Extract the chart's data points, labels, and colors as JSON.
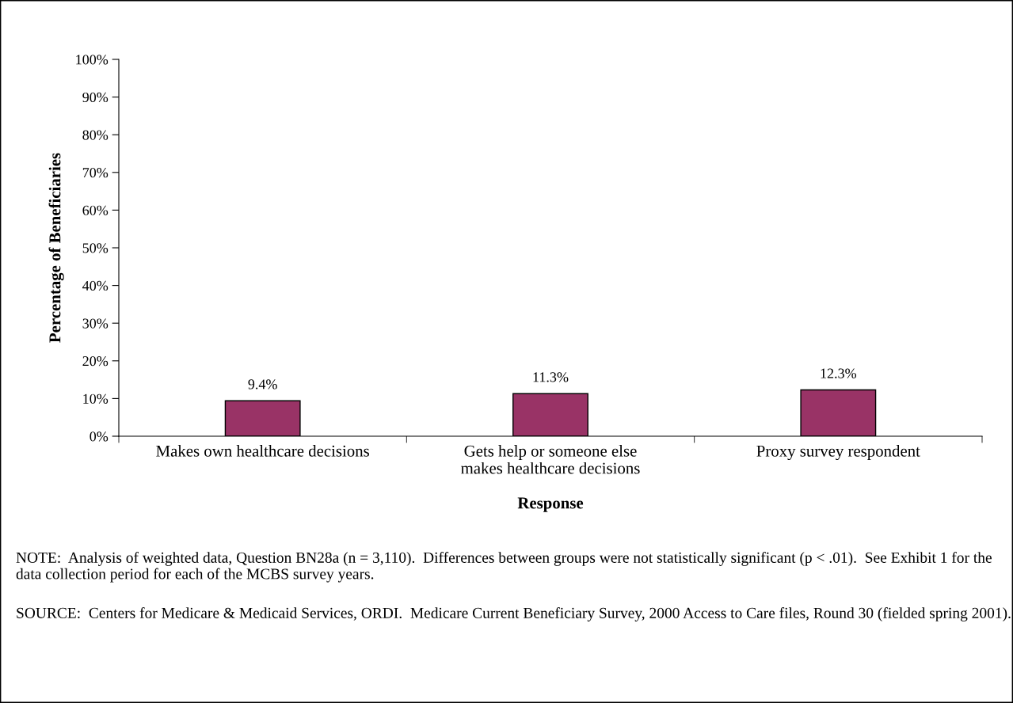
{
  "chart_data": {
    "type": "bar",
    "categories": [
      "Makes own healthcare decisions",
      "Gets help or someone else\nmakes healthcare decisions",
      "Proxy survey respondent"
    ],
    "values": [
      9.4,
      11.3,
      12.3
    ],
    "value_labels": [
      "9.4%",
      "11.3%",
      "12.3%"
    ],
    "color": "#993366",
    "xlabel": "Response",
    "ylabel": "Percentage of Beneficiaries",
    "ylim": [
      0,
      100
    ],
    "yticks": [
      {
        "value": 0,
        "label": "0%"
      },
      {
        "value": 10,
        "label": "10%"
      },
      {
        "value": 20,
        "label": "20%"
      },
      {
        "value": 30,
        "label": "30%"
      },
      {
        "value": 40,
        "label": "40%"
      },
      {
        "value": 50,
        "label": "50%"
      },
      {
        "value": 60,
        "label": "60%"
      },
      {
        "value": 70,
        "label": "70%"
      },
      {
        "value": 80,
        "label": "80%"
      },
      {
        "value": 90,
        "label": "90%"
      },
      {
        "value": 100,
        "label": "100%"
      }
    ],
    "grid": false,
    "legend": false,
    "annotations": [
      "NOTE:  Analysis of weighted data, Question BN28a (n = 3,110).  Differences between groups were not statistically significant (p < .01).  See Exhibit 1 for the data collection period for each of the MCBS survey years.",
      "SOURCE:  Centers for Medicare & Medicaid Services, ORDI.  Medicare Current Beneficiary Survey, 2000 Access to Care files, Round 30 (fielded spring 2001)."
    ]
  }
}
